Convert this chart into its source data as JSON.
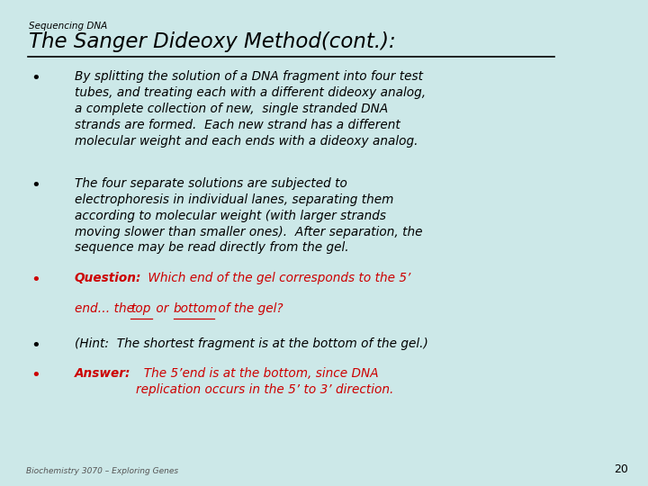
{
  "bg_color": "#cce8e8",
  "small_title": "Sequencing DNA",
  "main_title": "The Sanger Dideoxy Method(cont.):",
  "footer": "Biochemistry 3070 – Exploring Genes",
  "page_num": "20",
  "bullets": [
    {
      "color": "#000000",
      "label": "",
      "text": "By splitting the solution of a DNA fragment into four test\ntubes, and treating each with a different dideoxy analog,\na complete collection of new,  single stranded DNA\nstrands are formed.  Each new strand has a different\nmolecular weight and each ends with a dideoxy analog."
    },
    {
      "color": "#000000",
      "label": "",
      "text": "The four separate solutions are subjected to\nelectrophoresis in individual lanes, separating them\naccording to molecular weight (with larger strands\nmoving slower than smaller ones).  After separation, the\nsequence may be read directly from the gel."
    },
    {
      "color": "#cc0000",
      "label": "Question:",
      "text": " Which end of the gel corresponds to the 5’\nend… the top or bottom of the gel?",
      "underline_words": [
        "top",
        "bottom"
      ]
    },
    {
      "color": "#000000",
      "label": "",
      "text": "(Hint:  The shortest fragment is at the bottom of the gel.)"
    },
    {
      "color": "#cc0000",
      "label": "Answer:",
      "text": "  The 5’end is at the bottom, since DNA\nreplication occurs in the 5’ to 3’ direction."
    }
  ]
}
